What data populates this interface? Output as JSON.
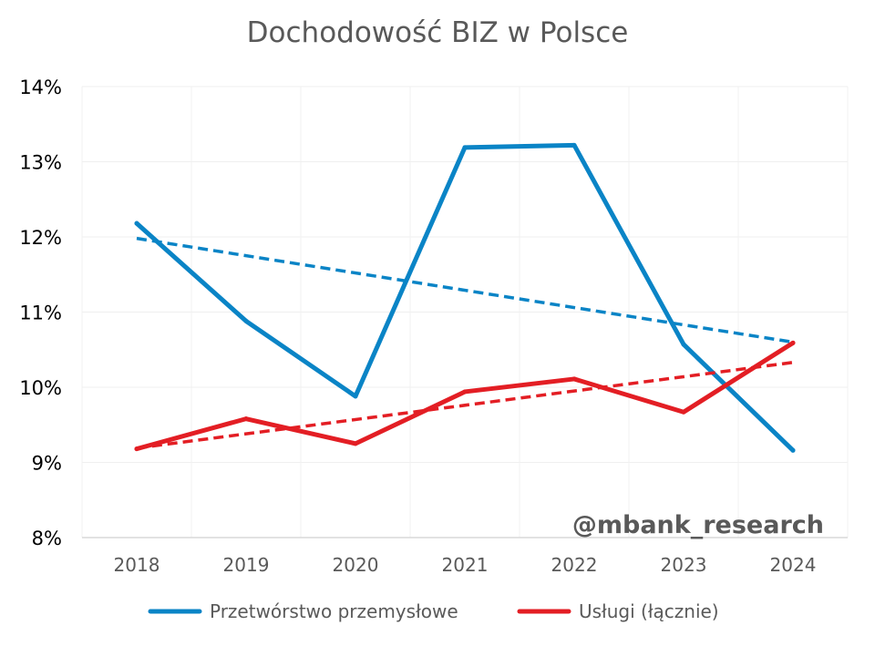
{
  "chart_data": {
    "type": "line",
    "title": "Dochodowość BIZ w Polsce",
    "xlabel": "",
    "ylabel": "",
    "categories": [
      "2018",
      "2019",
      "2020",
      "2021",
      "2022",
      "2023",
      "2024"
    ],
    "y_ticks": [
      "8%",
      "9%",
      "10%",
      "11%",
      "12%",
      "13%",
      "14%"
    ],
    "ylim": [
      8,
      14
    ],
    "grid": true,
    "legend_position": "bottom",
    "series": [
      {
        "name": "Przetwórstwo przemysłowe",
        "values": [
          12.18,
          10.88,
          9.88,
          13.19,
          13.22,
          10.57,
          9.16
        ],
        "trend": [
          11.98,
          10.6
        ],
        "color": "#0a84c6"
      },
      {
        "name": "Usługi (łącznie)",
        "values": [
          9.18,
          9.58,
          9.25,
          9.94,
          10.11,
          9.67,
          10.59
        ],
        "trend": [
          9.19,
          10.33
        ],
        "color": "#e31e24"
      }
    ],
    "watermark": "@mbank_research"
  }
}
